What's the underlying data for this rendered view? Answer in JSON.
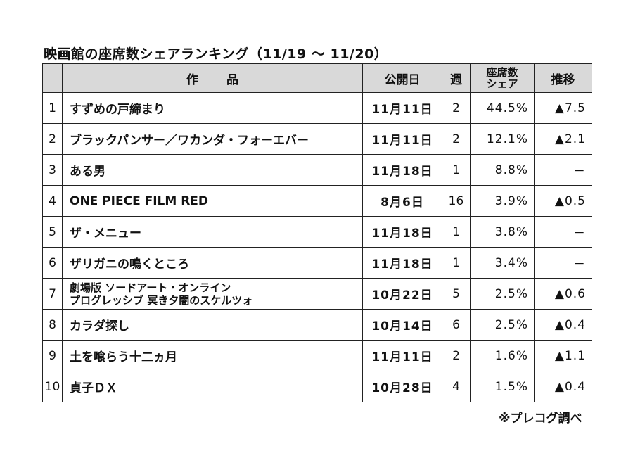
{
  "title": "映画館の座席数シェアランキング（11/19 ～ 11/20）",
  "headers": {
    "rank": "",
    "work": "作品",
    "release_date": "公開日",
    "weeks": "週",
    "share_line1": "座席数",
    "share_line2": "シェア",
    "trend": "推移"
  },
  "rows": [
    {
      "rank": "1",
      "title": "すずめの戸締まり",
      "release_date": "11月11日",
      "weeks": "2",
      "share": "44.5%",
      "trend": "▲7.5"
    },
    {
      "rank": "2",
      "title": "ブラックパンサー／ワカンダ・フォーエバー",
      "release_date": "11月11日",
      "weeks": "2",
      "share": "12.1%",
      "trend": "▲2.1"
    },
    {
      "rank": "3",
      "title": "ある男",
      "release_date": "11月18日",
      "weeks": "1",
      "share": "8.8%",
      "trend": "－"
    },
    {
      "rank": "4",
      "title": "ONE PIECE FILM RED",
      "release_date": "8月6日",
      "weeks": "16",
      "share": "3.9%",
      "trend": "▲0.5"
    },
    {
      "rank": "5",
      "title": "ザ・メニュー",
      "release_date": "11月18日",
      "weeks": "1",
      "share": "3.8%",
      "trend": "－"
    },
    {
      "rank": "6",
      "title": "ザリガニの鳴くところ",
      "release_date": "11月18日",
      "weeks": "1",
      "share": "3.4%",
      "trend": "－"
    },
    {
      "rank": "7",
      "title_line1": "劇場版 ソードアート・オンライン",
      "title_line2": "プログレッシブ 冥き夕闇のスケルツォ",
      "release_date": "10月22日",
      "weeks": "5",
      "share": "2.5%",
      "trend": "▲0.6"
    },
    {
      "rank": "8",
      "title": "カラダ探し",
      "release_date": "10月14日",
      "weeks": "6",
      "share": "2.5%",
      "trend": "▲0.4"
    },
    {
      "rank": "9",
      "title": "土を喰らう十二ヵ月",
      "release_date": "11月11日",
      "weeks": "2",
      "share": "1.6%",
      "trend": "▲1.1"
    },
    {
      "rank": "10",
      "title": "貞子ＤＸ",
      "release_date": "10月28日",
      "weeks": "4",
      "share": "1.5%",
      "trend": "▲0.4"
    }
  ],
  "source": "※プレコグ調べ"
}
